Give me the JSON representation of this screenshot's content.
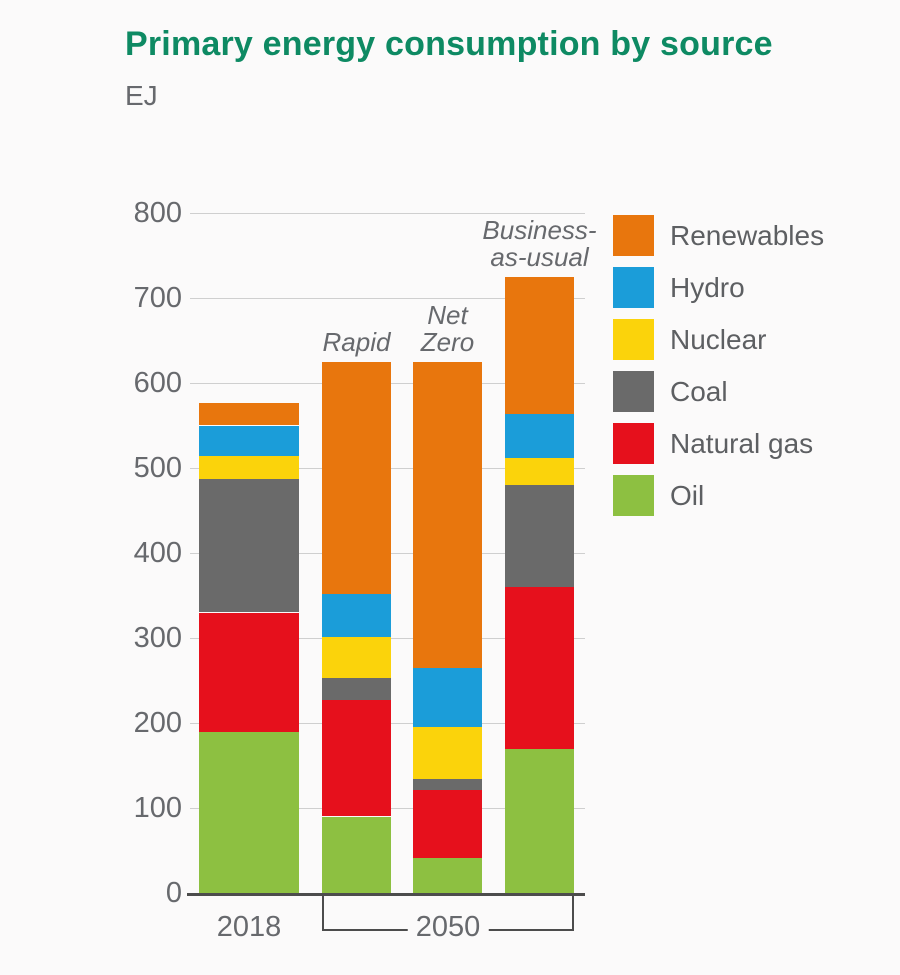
{
  "title": "Primary energy consumption by source",
  "unit_label": "EJ",
  "colors": {
    "title": "#0e8a63",
    "text": "#67696d",
    "axis": "#4c4c4c",
    "gridline": "#cfcfcf",
    "background": "#fbfafa"
  },
  "chart_data": {
    "type": "bar",
    "stacked": true,
    "title": "Primary energy consumption by source",
    "ylabel": "EJ",
    "ylim": [
      0,
      800
    ],
    "ytick_interval": 100,
    "yticks": [
      0,
      100,
      200,
      300,
      400,
      500,
      600,
      700,
      800
    ],
    "grid": true,
    "categories": [
      "2018",
      "Rapid",
      "Net Zero",
      "Business-as-usual"
    ],
    "bar_annotations": [
      "",
      "Rapid",
      "Net\nZero",
      "Business-\nas-usual"
    ],
    "series": [
      {
        "name": "Oil",
        "color": "#8dc041",
        "values": [
          190,
          90,
          41,
          170
        ]
      },
      {
        "name": "Natural gas",
        "color": "#e6101c",
        "values": [
          140,
          137,
          80,
          190
        ]
      },
      {
        "name": "Coal",
        "color": "#6a6a6a",
        "values": [
          157,
          26,
          13,
          120
        ]
      },
      {
        "name": "Nuclear",
        "color": "#fbd30b",
        "values": [
          27,
          48,
          61,
          32
        ]
      },
      {
        "name": "Hydro",
        "color": "#1b9dd9",
        "values": [
          36,
          51,
          70,
          52
        ]
      },
      {
        "name": "Renewables",
        "color": "#e8760d",
        "values": [
          26,
          273,
          360,
          161
        ]
      }
    ],
    "totals": [
      576,
      625,
      625,
      725
    ],
    "legend": [
      "Renewables",
      "Hydro",
      "Nuclear",
      "Coal",
      "Natural gas",
      "Oil"
    ],
    "legend_position": "right",
    "xaxis_groups": [
      {
        "label": "2018",
        "bars": [
          0
        ]
      },
      {
        "label": "2050",
        "bars": [
          1,
          2,
          3
        ]
      }
    ]
  }
}
